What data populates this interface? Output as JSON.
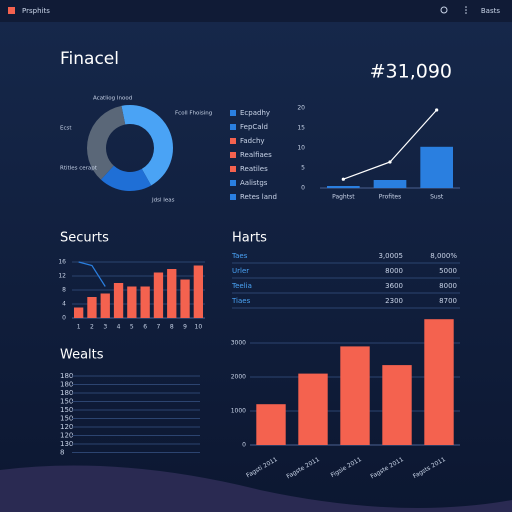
{
  "header": {
    "brand": "Prsphits",
    "action": "Basts"
  },
  "title": "Finacel",
  "total": "#31,090",
  "legend": [
    {
      "name": "Ecpadhy",
      "color": "#2a7fe0"
    },
    {
      "name": "FepCald",
      "color": "#2a7fe0"
    },
    {
      "name": "Fadchy",
      "color": "#f4624f"
    },
    {
      "name": "Realfiaes",
      "color": "#f4624f"
    },
    {
      "name": "Reatiles",
      "color": "#f4624f"
    },
    {
      "name": "Aalistgs",
      "color": "#2a7fe0"
    },
    {
      "name": "Retes land",
      "color": "#2a7fe0"
    }
  ],
  "table": {
    "title": "Harts",
    "rows": [
      [
        "Taes",
        "3,0005",
        "8,000%"
      ],
      [
        "Urler",
        "8000",
        "5000"
      ],
      [
        "Teelia",
        "3600",
        "8000"
      ],
      [
        "Tiaes",
        "2300",
        "8700"
      ]
    ]
  },
  "wealts": {
    "title": "Wealts",
    "labels": [
      "180",
      "180",
      "180",
      "150",
      "150",
      "150",
      "120",
      "120",
      "130",
      "8"
    ]
  },
  "chart_data": [
    {
      "type": "pie",
      "donut": true,
      "values": [
        45,
        20,
        35
      ],
      "colors": [
        "#4aa3f5",
        "#1f6fd6",
        "#5a6778"
      ],
      "annotations": [
        "Acatliog Inood",
        "Ecst",
        "Rtitles cerapt",
        "Fcoll Fhoising",
        "Jdsl Ieas"
      ]
    },
    {
      "type": "bar",
      "categories": [
        "Paghtst",
        "Profites",
        "Sust"
      ],
      "series": [
        {
          "color": "#2a7fe0",
          "values": [
            0.5,
            2,
            10.3
          ]
        },
        {
          "type": "line",
          "color": "#ffffff",
          "values": [
            2.2,
            6.5,
            19.5
          ]
        }
      ],
      "ylim": [
        0,
        20
      ],
      "yticks": [
        0,
        5,
        10,
        15,
        20
      ],
      "grid": false
    },
    {
      "type": "bar",
      "title": "Securts",
      "categories": [
        "1",
        "2",
        "3",
        "4",
        "5",
        "6",
        "7",
        "8",
        "9",
        "10"
      ],
      "series": [
        {
          "color": "#f4624f",
          "values": [
            3,
            6,
            7,
            10,
            9,
            9,
            13,
            14,
            11,
            15
          ]
        },
        {
          "type": "line",
          "color": "#2a7fe0",
          "values": [
            16,
            15,
            9,
            null,
            null,
            null,
            null,
            null,
            null,
            null
          ]
        }
      ],
      "ylim": [
        0,
        16
      ],
      "yticks": [
        0,
        4,
        8,
        12,
        16
      ],
      "grid": true
    },
    {
      "type": "bar",
      "categories": [
        "Fagsti 2011",
        "Fagste 2011",
        "Figsie 2011",
        "Fagste 2011",
        "Fagsts 2011"
      ],
      "series": [
        {
          "color": "#f4624f",
          "values": [
            1200,
            2100,
            2900,
            2350,
            3700
          ]
        }
      ],
      "ylim": [
        0,
        4000
      ],
      "yticks": [
        0,
        1000,
        2000,
        3000
      ],
      "grid": true
    }
  ]
}
